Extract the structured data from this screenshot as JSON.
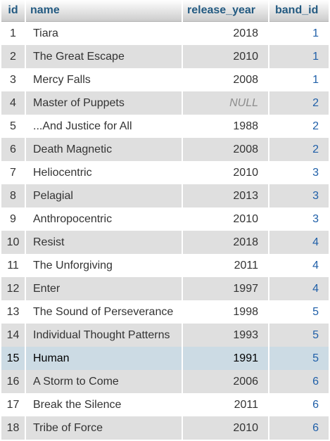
{
  "columns": {
    "id": "id",
    "name": "name",
    "release_year": "release_year",
    "band_id": "band_id"
  },
  "rows": [
    {
      "id": "1",
      "name": "Tiara",
      "release_year": "2018",
      "band_id": "1"
    },
    {
      "id": "2",
      "name": "The Great Escape",
      "release_year": "2010",
      "band_id": "1"
    },
    {
      "id": "3",
      "name": "Mercy Falls",
      "release_year": "2008",
      "band_id": "1"
    },
    {
      "id": "4",
      "name": "Master of Puppets",
      "release_year": "NULL",
      "band_id": "2"
    },
    {
      "id": "5",
      "name": "...And Justice for All",
      "release_year": "1988",
      "band_id": "2"
    },
    {
      "id": "6",
      "name": "Death Magnetic",
      "release_year": "2008",
      "band_id": "2"
    },
    {
      "id": "7",
      "name": "Heliocentric",
      "release_year": "2010",
      "band_id": "3"
    },
    {
      "id": "8",
      "name": "Pelagial",
      "release_year": "2013",
      "band_id": "3"
    },
    {
      "id": "9",
      "name": "Anthropocentric",
      "release_year": "2010",
      "band_id": "3"
    },
    {
      "id": "10",
      "name": "Resist",
      "release_year": "2018",
      "band_id": "4"
    },
    {
      "id": "11",
      "name": "The Unforgiving",
      "release_year": "2011",
      "band_id": "4"
    },
    {
      "id": "12",
      "name": "Enter",
      "release_year": "1997",
      "band_id": "4"
    },
    {
      "id": "13",
      "name": "The Sound of Perseverance",
      "release_year": "1998",
      "band_id": "5"
    },
    {
      "id": "14",
      "name": "Individual Thought Patterns",
      "release_year": "1993",
      "band_id": "5"
    },
    {
      "id": "15",
      "name": "Human",
      "release_year": "1991",
      "band_id": "5"
    },
    {
      "id": "16",
      "name": "A Storm to Come",
      "release_year": "2006",
      "band_id": "6"
    },
    {
      "id": "17",
      "name": "Break the Silence",
      "release_year": "2011",
      "band_id": "6"
    },
    {
      "id": "18",
      "name": "Tribe of Force",
      "release_year": "2010",
      "band_id": "6"
    }
  ],
  "highlighted_row_id": "15",
  "colors": {
    "header_text": "#235a81",
    "row_even": "#dfdfdf",
    "row_odd": "#ffffff",
    "row_hover": "#ccdbe4",
    "link": "#1f5fa8",
    "null_text": "#8c8c8c"
  }
}
